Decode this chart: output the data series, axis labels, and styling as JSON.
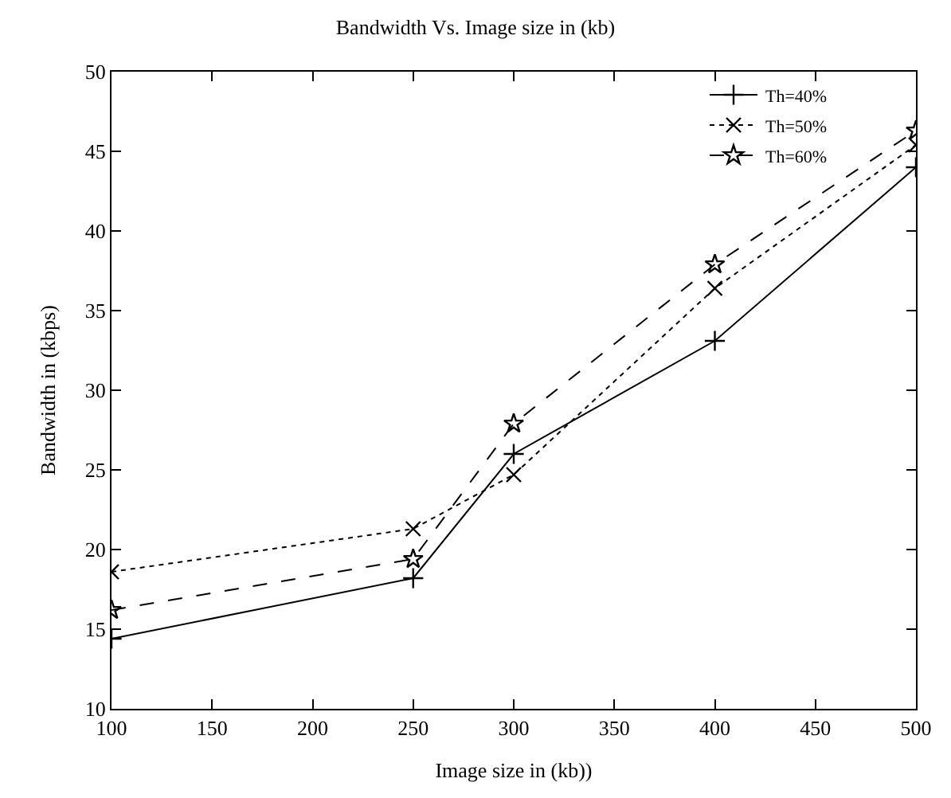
{
  "chart_data": {
    "type": "line",
    "title": "Bandwidth Vs. Image size in (kb)",
    "xlabel": "Image size in (kb))",
    "ylabel": "Bandwidth in (kbps)",
    "x": [
      100,
      250,
      300,
      400,
      500
    ],
    "series": [
      {
        "name": "Th=40%",
        "color": "#000000",
        "marker": "cross",
        "line_style": "solid",
        "values": [
          14.4,
          18.2,
          26.0,
          33.1,
          44.0
        ]
      },
      {
        "name": "Th=50%",
        "color": "#000000",
        "marker": "x",
        "line_style": "dotted",
        "values": [
          18.6,
          21.3,
          24.7,
          36.4,
          45.4
        ]
      },
      {
        "name": "Th=60%",
        "color": "#000000",
        "marker": "star",
        "line_style": "dashed",
        "values": [
          16.2,
          19.4,
          27.9,
          37.9,
          46.3
        ]
      }
    ],
    "xlim": [
      100,
      500
    ],
    "xticks": [
      100,
      150,
      200,
      250,
      300,
      350,
      400,
      450,
      500
    ],
    "ylim": [
      10,
      50
    ],
    "yticks": [
      10,
      15,
      20,
      25,
      30,
      35,
      40,
      45,
      50
    ],
    "grid": false,
    "legend": "top right"
  }
}
